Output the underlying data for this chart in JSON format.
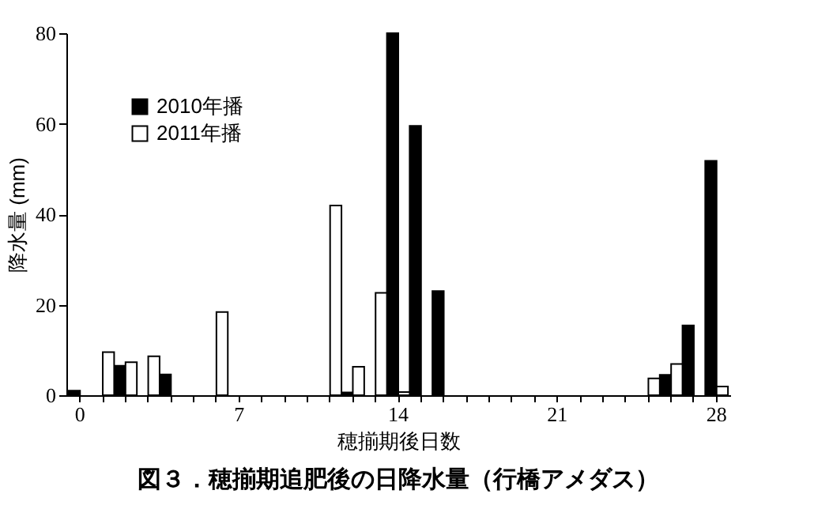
{
  "chart_data": {
    "type": "bar",
    "title": "図３．穂揃期追肥後の日降水量（行橋アメダス）",
    "xlabel": "穂揃期後日数",
    "ylabel": "降水量 (mm)",
    "categories": [
      "0",
      null,
      null,
      null,
      null,
      null,
      null,
      "7",
      null,
      null,
      null,
      null,
      null,
      null,
      "14",
      null,
      null,
      null,
      null,
      null,
      null,
      "21",
      null,
      null,
      null,
      null,
      null,
      null,
      "28"
    ],
    "series": [
      {
        "name": "2010年播",
        "color": "#000000",
        "values": [
          1,
          null,
          6.5,
          null,
          4.6,
          null,
          null,
          null,
          null,
          null,
          null,
          null,
          0.6,
          null,
          80,
          59.5,
          23,
          null,
          null,
          null,
          null,
          null,
          null,
          null,
          null,
          null,
          4.5,
          15.4,
          51.8
        ]
      },
      {
        "name": "2011年播",
        "color": "#ffffff",
        "values": [
          null,
          9.5,
          7.3,
          8.6,
          null,
          null,
          18.4,
          null,
          null,
          null,
          null,
          41.9,
          6.3,
          22.6,
          0.7,
          null,
          null,
          null,
          null,
          null,
          null,
          null,
          null,
          null,
          null,
          3.7,
          6.9,
          null,
          1.9
        ]
      }
    ],
    "ylim": [
      0,
      80
    ],
    "yticks": [
      0,
      20,
      40,
      60,
      80
    ],
    "legend": "top left",
    "grid": false
  }
}
